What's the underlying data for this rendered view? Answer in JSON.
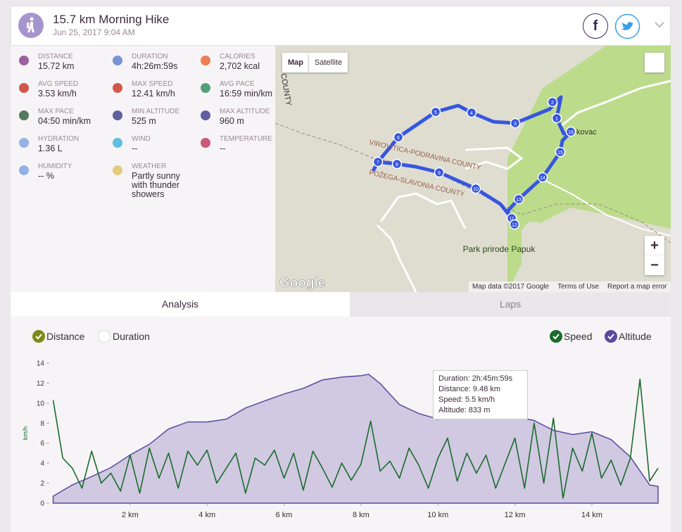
{
  "header": {
    "title": "15.7 km Morning Hike",
    "date": "Jun 25, 2017 9:04 AM",
    "facebook": "f"
  },
  "stats": [
    {
      "label": "DISTANCE",
      "value": "15.72 km"
    },
    {
      "label": "DURATION",
      "value": "4h:26m:59s"
    },
    {
      "label": "CALORIES",
      "value": "2,702 kcal"
    },
    {
      "label": "AVG SPEED",
      "value": "3.53 km/h"
    },
    {
      "label": "MAX SPEED",
      "value": "12.41 km/h"
    },
    {
      "label": "AVG PACE",
      "value": "16:59 min/km"
    },
    {
      "label": "MAX PACE",
      "value": "04:50 min/km"
    },
    {
      "label": "MIN ALTITUDE",
      "value": "525 m"
    },
    {
      "label": "MAX ALTITUDE",
      "value": "960 m"
    },
    {
      "label": "HYDRATION",
      "value": "1.36 L"
    },
    {
      "label": "WIND",
      "value": "--"
    },
    {
      "label": "TEMPERATURE",
      "value": "--"
    },
    {
      "label": "HUMIDITY",
      "value": "-- %"
    },
    {
      "label": "WEATHER",
      "value": "Partly sunny with thunder showers"
    }
  ],
  "map": {
    "map_button": "Map",
    "satellite_button": "Satellite",
    "place": "kovac",
    "county_edge": "COUNTY",
    "county_north": "VIROVITICA-PODRAVINA COUNTY",
    "county_south": "POŽEGA-SLAVONIA COUNTY",
    "park": "Park prirode Papuk",
    "logo": "Google",
    "attribution": "Map data ©2017 Google",
    "terms": "Terms of Use",
    "report": "Report a map error",
    "zoom_in": "+",
    "zoom_out": "−",
    "route_markers": [
      1,
      2,
      3,
      4,
      5,
      6,
      7,
      8,
      9,
      10,
      11,
      12,
      13,
      14,
      15,
      16
    ]
  },
  "tabs": [
    "Analysis",
    "Laps"
  ],
  "chart_data": {
    "type": "line",
    "x_axis_toggles": [
      "Distance",
      "Duration"
    ],
    "ylabel": "km/h",
    "xlim": [
      0,
      15.72
    ],
    "xticks": [
      {
        "value": 2,
        "label": "2 km"
      },
      {
        "value": 4,
        "label": "4 km"
      },
      {
        "value": 6,
        "label": "6 km"
      },
      {
        "value": 8,
        "label": "8 km"
      },
      {
        "value": 10,
        "label": "10 km"
      },
      {
        "value": 12,
        "label": "12 km"
      },
      {
        "value": 14,
        "label": "14 km"
      }
    ],
    "ylim": [
      0,
      14
    ],
    "yticks": [
      0,
      2,
      4,
      6,
      8,
      10,
      12,
      14
    ],
    "y2lim": [
      500,
      1000
    ],
    "series": [
      {
        "name": "Speed",
        "color": "#1b6b2c",
        "x": [
          0,
          0.25,
          0.5,
          0.75,
          1,
          1.25,
          1.5,
          1.75,
          2,
          2.25,
          2.5,
          2.75,
          3,
          3.25,
          3.5,
          3.75,
          4,
          4.25,
          4.5,
          4.75,
          5,
          5.25,
          5.5,
          5.75,
          6,
          6.25,
          6.5,
          6.75,
          7,
          7.25,
          7.5,
          7.75,
          8,
          8.25,
          8.5,
          8.75,
          9,
          9.25,
          9.5,
          9.75,
          10,
          10.25,
          10.5,
          10.75,
          11,
          11.25,
          11.5,
          11.75,
          12,
          12.25,
          12.5,
          12.75,
          13,
          13.25,
          13.5,
          13.75,
          14,
          14.25,
          14.5,
          14.75,
          15,
          15.25,
          15.5,
          15.72
        ],
        "values": [
          10.3,
          4.5,
          3.5,
          1.5,
          5.2,
          2.0,
          3.0,
          1.2,
          4.8,
          1.0,
          5.5,
          2.5,
          5.0,
          1.5,
          5.2,
          3.8,
          5.3,
          2.0,
          3.5,
          5.0,
          1.0,
          4.5,
          3.8,
          5.3,
          2.5,
          5.0,
          1.3,
          5.2,
          3.5,
          1.6,
          4.0,
          2.3,
          3.9,
          8.2,
          3.2,
          4.2,
          2.5,
          5.5,
          3.8,
          1.5,
          4.5,
          6.5,
          2.2,
          5.0,
          3.0,
          4.8,
          1.5,
          4.0,
          6.5,
          1.5,
          8.0,
          2.0,
          8.5,
          0.5,
          5.5,
          3.2,
          7.0,
          2.5,
          4.3,
          1.8,
          4.5,
          12.4,
          2.2,
          3.5
        ]
      },
      {
        "name": "Altitude",
        "color": "#5a4a9f",
        "axis": "y2",
        "x": [
          0,
          0.5,
          1,
          1.5,
          2,
          2.5,
          3,
          3.5,
          4,
          4.5,
          5,
          5.5,
          6,
          6.5,
          7,
          7.5,
          8,
          8.2,
          8.5,
          9,
          9.5,
          10,
          10.5,
          11,
          11.5,
          12,
          12.5,
          13,
          13.5,
          14,
          14.5,
          15,
          15.5,
          15.72
        ],
        "values": [
          525,
          565,
          595,
          627,
          672,
          710,
          765,
          790,
          790,
          800,
          840,
          865,
          890,
          910,
          940,
          950,
          955,
          960,
          927,
          852,
          820,
          800,
          812,
          820,
          815,
          810,
          795,
          760,
          745,
          755,
          727,
          665,
          565,
          560
        ]
      }
    ],
    "tooltip": [
      "Duration: 2h:45m:59s",
      "Distance: 9.48 km",
      "Speed: 5.5 km/h",
      "Altitude: 833 m"
    ]
  }
}
